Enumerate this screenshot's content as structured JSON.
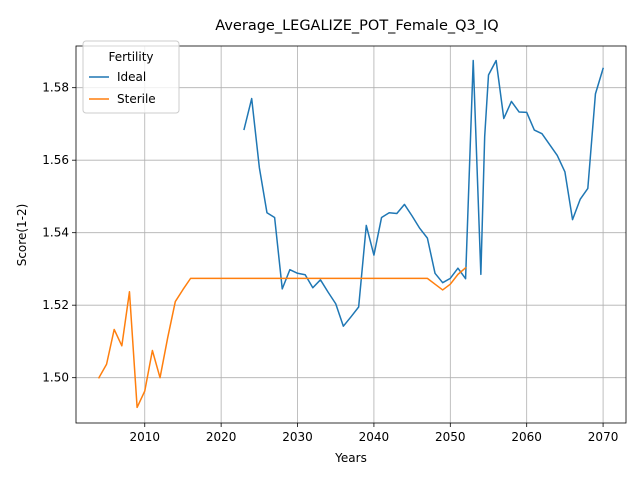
{
  "chart_data": {
    "type": "line",
    "title": "Average_LEGALIZE_POT_Female_Q3_IQ",
    "xlabel": "Years",
    "ylabel": "Score(1-2)",
    "xlim": [
      2001,
      2073
    ],
    "ylim": [
      1.4875,
      1.5915
    ],
    "xticks": [
      2010,
      2020,
      2030,
      2040,
      2050,
      2060,
      2070
    ],
    "yticks": [
      1.5,
      1.52,
      1.54,
      1.56,
      1.58
    ],
    "ytick_labels": [
      "1.50",
      "1.52",
      "1.54",
      "1.56",
      "1.58"
    ],
    "grid": true,
    "legend": {
      "title": "Fertility",
      "placement": "top-left"
    },
    "series": [
      {
        "name": "Ideal",
        "color": "#1f77b4",
        "x": [
          2023,
          2024,
          2025,
          2026,
          2027,
          2028,
          2029,
          2030,
          2031,
          2032,
          2033,
          2034,
          2035,
          2036,
          2037,
          2038,
          2039,
          2040,
          2041,
          2042,
          2043,
          2044,
          2045,
          2046,
          2047,
          2048,
          2049,
          2050,
          2051,
          2052,
          2053,
          2054,
          2054.5,
          2055,
          2056,
          2057,
          2058,
          2059,
          2060,
          2061,
          2062,
          2063,
          2064,
          2065,
          2066,
          2067,
          2068,
          2069,
          2070
        ],
        "values": [
          1.5685,
          1.577,
          1.558,
          1.5455,
          1.5442,
          1.5245,
          1.5298,
          1.5288,
          1.5284,
          1.5248,
          1.527,
          1.5236,
          1.5204,
          1.5142,
          1.5168,
          1.5195,
          1.542,
          1.5338,
          1.5442,
          1.5455,
          1.5453,
          1.5478,
          1.5446,
          1.5412,
          1.5385,
          1.5288,
          1.5262,
          1.5274,
          1.5302,
          1.5273,
          1.5875,
          1.5285,
          1.5665,
          1.5835,
          1.5875,
          1.5715,
          1.5762,
          1.5733,
          1.5732,
          1.5683,
          1.5673,
          1.5643,
          1.5613,
          1.5568,
          1.5436,
          1.5492,
          1.5522,
          1.5783,
          1.5853
        ]
      },
      {
        "name": "Sterile",
        "color": "#ff7f0e",
        "x": [
          2004,
          2005,
          2006,
          2007,
          2008,
          2009,
          2010,
          2011,
          2012,
          2013,
          2014,
          2015,
          2016,
          2017,
          2018,
          2019,
          2020,
          2021,
          2022,
          2023,
          2024,
          2025,
          2026,
          2027,
          2028,
          2029,
          2030,
          2031,
          2032,
          2033,
          2034,
          2035,
          2036,
          2037,
          2038,
          2039,
          2040,
          2041,
          2042,
          2043,
          2044,
          2045,
          2046,
          2047,
          2048,
          2049,
          2050,
          2051,
          2052
        ],
        "values": [
          1.5,
          1.5037,
          1.5133,
          1.5088,
          1.5237,
          1.4918,
          1.4963,
          1.5075,
          1.5,
          1.511,
          1.521,
          1.5243,
          1.5274,
          1.5274,
          1.5274,
          1.5274,
          1.5274,
          1.5274,
          1.5274,
          1.5274,
          1.5274,
          1.5274,
          1.5274,
          1.5274,
          1.5274,
          1.5274,
          1.5274,
          1.5274,
          1.5274,
          1.5274,
          1.5274,
          1.5274,
          1.5274,
          1.5274,
          1.5274,
          1.5274,
          1.5274,
          1.5274,
          1.5274,
          1.5274,
          1.5274,
          1.5274,
          1.5274,
          1.5274,
          1.5258,
          1.5242,
          1.5258,
          1.5285,
          1.5303
        ]
      }
    ]
  }
}
